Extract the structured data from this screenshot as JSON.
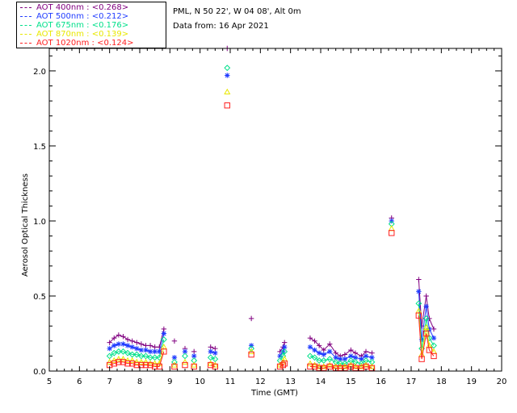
{
  "legend": [
    {
      "label": "AOT  400nm : <0.268>",
      "color": "#800080"
    },
    {
      "label": "AOT  500nm : <0.212>",
      "color": "#1f3bff"
    },
    {
      "label": "AOT  675nm : <0.176>",
      "color": "#00e08a"
    },
    {
      "label": "AOT  870nm : <0.139>",
      "color": "#e8e800"
    },
    {
      "label": "AOT 1020nm : <0.124>",
      "color": "#ff2020"
    }
  ],
  "info": {
    "site": "PML, N 50 22', W 04 08', Alt 0m",
    "date": "Data from: 16 Apr 2021"
  },
  "chart_data": {
    "type": "scatter",
    "xlabel": "Time (GMT)",
    "ylabel": "Aerosol Optical Thickness",
    "xlim": [
      5,
      20
    ],
    "ylim": [
      0,
      2.15
    ],
    "xticks": [
      "5",
      "6",
      "7",
      "8",
      "9",
      "10",
      "11",
      "12",
      "13",
      "14",
      "15",
      "16",
      "17",
      "18",
      "19",
      "20"
    ],
    "yticks": [
      "0.0",
      "0.5",
      "1.0",
      "1.5",
      "2.0"
    ],
    "series": [
      {
        "name": "AOT  400nm : <0.268>",
        "marker": "plus",
        "color": "#800080",
        "x": [
          7.0,
          7.15,
          7.3,
          7.45,
          7.6,
          7.75,
          7.9,
          8.05,
          8.2,
          8.35,
          8.5,
          8.65,
          8.8,
          9.15,
          9.5,
          9.8,
          10.35,
          10.5,
          10.9,
          11.7,
          12.65,
          12.75,
          12.8,
          13.65,
          13.8,
          13.95,
          14.1,
          14.3,
          14.5,
          14.65,
          14.8,
          15.0,
          15.15,
          15.35,
          15.5,
          15.7,
          16.35,
          17.25,
          17.35,
          17.5,
          17.6,
          17.75
        ],
        "y": [
          0.19,
          0.22,
          0.24,
          0.23,
          0.21,
          0.2,
          0.19,
          0.18,
          0.17,
          0.17,
          0.16,
          0.16,
          0.28,
          0.2,
          0.15,
          0.13,
          0.16,
          0.15,
          2.15,
          0.35,
          0.13,
          0.16,
          0.19,
          0.22,
          0.2,
          0.17,
          0.14,
          0.18,
          0.12,
          0.1,
          0.11,
          0.14,
          0.12,
          0.1,
          0.13,
          0.12,
          1.02,
          0.61,
          0.3,
          0.5,
          0.35,
          0.28
        ]
      },
      {
        "name": "AOT  500nm : <0.212>",
        "marker": "star",
        "color": "#1f3bff",
        "x": [
          7.0,
          7.15,
          7.3,
          7.45,
          7.6,
          7.75,
          7.9,
          8.05,
          8.2,
          8.35,
          8.5,
          8.65,
          8.8,
          9.15,
          9.5,
          9.8,
          10.35,
          10.5,
          10.9,
          11.7,
          12.65,
          12.75,
          12.8,
          13.65,
          13.8,
          13.95,
          14.1,
          14.3,
          14.5,
          14.65,
          14.8,
          15.0,
          15.15,
          15.35,
          15.5,
          15.7,
          16.35,
          17.25,
          17.35,
          17.5,
          17.6,
          17.75
        ],
        "y": [
          0.15,
          0.17,
          0.18,
          0.18,
          0.17,
          0.16,
          0.15,
          0.14,
          0.14,
          0.13,
          0.13,
          0.13,
          0.25,
          0.09,
          0.13,
          0.1,
          0.13,
          0.12,
          1.97,
          0.17,
          0.1,
          0.13,
          0.16,
          0.16,
          0.14,
          0.12,
          0.11,
          0.13,
          0.09,
          0.08,
          0.08,
          0.1,
          0.09,
          0.08,
          0.1,
          0.09,
          1.0,
          0.53,
          0.21,
          0.43,
          0.28,
          0.22
        ]
      },
      {
        "name": "AOT  675nm : <0.176>",
        "marker": "diamond",
        "color": "#00e08a",
        "x": [
          7.0,
          7.15,
          7.3,
          7.45,
          7.6,
          7.75,
          7.9,
          8.05,
          8.2,
          8.35,
          8.5,
          8.65,
          8.8,
          9.15,
          9.5,
          9.8,
          10.35,
          10.5,
          10.9,
          11.7,
          12.65,
          12.75,
          12.8,
          13.65,
          13.8,
          13.95,
          14.1,
          14.3,
          14.5,
          14.65,
          14.8,
          15.0,
          15.15,
          15.35,
          15.5,
          15.7,
          16.35,
          17.25,
          17.35,
          17.5,
          17.6,
          17.75
        ],
        "y": [
          0.1,
          0.12,
          0.13,
          0.13,
          0.12,
          0.11,
          0.11,
          0.1,
          0.1,
          0.09,
          0.09,
          0.09,
          0.21,
          0.06,
          0.1,
          0.07,
          0.09,
          0.08,
          2.02,
          0.15,
          0.07,
          0.1,
          0.13,
          0.1,
          0.09,
          0.07,
          0.07,
          0.08,
          0.06,
          0.05,
          0.05,
          0.07,
          0.06,
          0.05,
          0.07,
          0.06,
          0.98,
          0.45,
          0.15,
          0.35,
          0.22,
          0.17
        ]
      },
      {
        "name": "AOT  870nm : <0.139>",
        "marker": "triangle",
        "color": "#e8e800",
        "x": [
          7.0,
          7.15,
          7.3,
          7.45,
          7.6,
          7.75,
          7.9,
          8.05,
          8.2,
          8.35,
          8.5,
          8.65,
          8.8,
          9.15,
          9.5,
          9.8,
          10.35,
          10.5,
          10.9,
          11.7,
          12.65,
          12.75,
          12.8,
          13.65,
          13.8,
          13.95,
          14.1,
          14.3,
          14.5,
          14.65,
          14.8,
          15.0,
          15.15,
          15.35,
          15.5,
          15.7,
          16.35,
          17.25,
          17.35,
          17.5,
          17.6,
          17.75
        ],
        "y": [
          0.06,
          0.07,
          0.08,
          0.08,
          0.07,
          0.07,
          0.06,
          0.06,
          0.06,
          0.05,
          0.05,
          0.05,
          0.16,
          0.04,
          0.06,
          0.04,
          0.05,
          0.04,
          1.86,
          0.13,
          0.04,
          0.06,
          0.08,
          0.05,
          0.04,
          0.03,
          0.03,
          0.04,
          0.03,
          0.03,
          0.03,
          0.04,
          0.03,
          0.03,
          0.04,
          0.03,
          0.95,
          0.4,
          0.11,
          0.29,
          0.17,
          0.13
        ]
      },
      {
        "name": "AOT 1020nm : <0.124>",
        "marker": "square",
        "color": "#ff2020",
        "x": [
          7.0,
          7.15,
          7.3,
          7.45,
          7.6,
          7.75,
          7.9,
          8.05,
          8.2,
          8.35,
          8.5,
          8.65,
          8.8,
          9.15,
          9.5,
          9.8,
          10.35,
          10.5,
          10.9,
          11.7,
          12.65,
          12.75,
          12.8,
          13.65,
          13.8,
          13.95,
          14.1,
          14.3,
          14.5,
          14.65,
          14.8,
          15.0,
          15.15,
          15.35,
          15.5,
          15.7,
          16.35,
          17.25,
          17.35,
          17.5,
          17.6,
          17.75
        ],
        "y": [
          0.04,
          0.05,
          0.06,
          0.06,
          0.05,
          0.05,
          0.04,
          0.04,
          0.04,
          0.04,
          0.03,
          0.03,
          0.13,
          0.03,
          0.04,
          0.03,
          0.04,
          0.03,
          1.77,
          0.11,
          0.03,
          0.04,
          0.05,
          0.03,
          0.03,
          0.02,
          0.02,
          0.03,
          0.02,
          0.02,
          0.02,
          0.03,
          0.02,
          0.02,
          0.03,
          0.02,
          0.92,
          0.37,
          0.08,
          0.25,
          0.14,
          0.1
        ]
      }
    ]
  }
}
